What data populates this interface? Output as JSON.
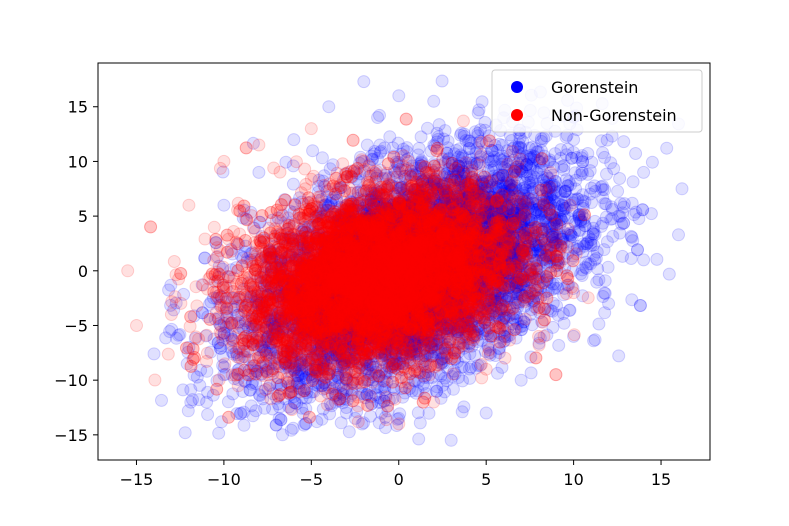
{
  "chart_data": {
    "type": "scatter",
    "title": "",
    "xlabel": "",
    "ylabel": "",
    "xlim": [
      -17.2,
      17.8
    ],
    "ylim": [
      -17.3,
      19.0
    ],
    "x_ticks": [
      -15,
      -10,
      -5,
      0,
      5,
      10,
      15
    ],
    "x_tick_labels": [
      "−15",
      "−10",
      "−5",
      "0",
      "5",
      "10",
      "15"
    ],
    "y_ticks": [
      -15,
      -10,
      -5,
      0,
      5,
      10,
      15
    ],
    "y_tick_labels": [
      "−15",
      "−10",
      "−5",
      "0",
      "5",
      "10",
      "15"
    ],
    "grid": false,
    "legend_position": "top-right",
    "point_alpha": 0.12,
    "series": [
      {
        "name": "Gorenstein",
        "color": "#0000ff",
        "count": 7000,
        "distribution": {
          "center": [
            0.8,
            0.0
          ],
          "spread": 4.6,
          "shear": 0.52,
          "x_range": [
            -14,
            16.3
          ],
          "y_range": [
            -15.5,
            17.5
          ]
        },
        "outline_points": [
          [
            -14,
            -7.6
          ],
          [
            -12,
            -7
          ],
          [
            -10,
            -9.5
          ],
          [
            -6,
            -11.5
          ],
          [
            -3,
            -12.5
          ],
          [
            0,
            -13.5
          ],
          [
            3,
            -15.5
          ],
          [
            5,
            -13
          ],
          [
            7,
            -10
          ],
          [
            10,
            -6
          ],
          [
            12,
            -3
          ],
          [
            14,
            1
          ],
          [
            16.2,
            7.5
          ],
          [
            14,
            9
          ],
          [
            10,
            12
          ],
          [
            6,
            14
          ],
          [
            2,
            15.5
          ],
          [
            0,
            16
          ],
          [
            -2,
            17.3
          ],
          [
            -4,
            15
          ],
          [
            -6,
            12
          ],
          [
            -8,
            9
          ],
          [
            -10,
            6
          ]
        ]
      },
      {
        "name": "Non-Gorenstein",
        "color": "#ff0000",
        "count": 7000,
        "distribution": {
          "center": [
            -1.0,
            -0.5
          ],
          "spread": 3.9,
          "shear": 0.28,
          "x_range": [
            -15.5,
            11
          ],
          "y_range": [
            -14,
            14
          ]
        },
        "outline_points": [
          [
            -15.5,
            0
          ],
          [
            -15,
            -5
          ],
          [
            -13,
            -4
          ],
          [
            -12,
            6
          ],
          [
            -10,
            10
          ],
          [
            -8,
            11.5
          ],
          [
            -5,
            13
          ],
          [
            -2,
            10
          ],
          [
            2,
            9
          ],
          [
            6,
            6
          ],
          [
            9,
            3
          ],
          [
            10,
            -2
          ],
          [
            8,
            -6
          ],
          [
            5,
            -9
          ],
          [
            2,
            -12
          ],
          [
            0,
            -14
          ],
          [
            -3,
            -11
          ],
          [
            -6,
            -10
          ],
          [
            -9,
            -8
          ]
        ]
      }
    ]
  }
}
